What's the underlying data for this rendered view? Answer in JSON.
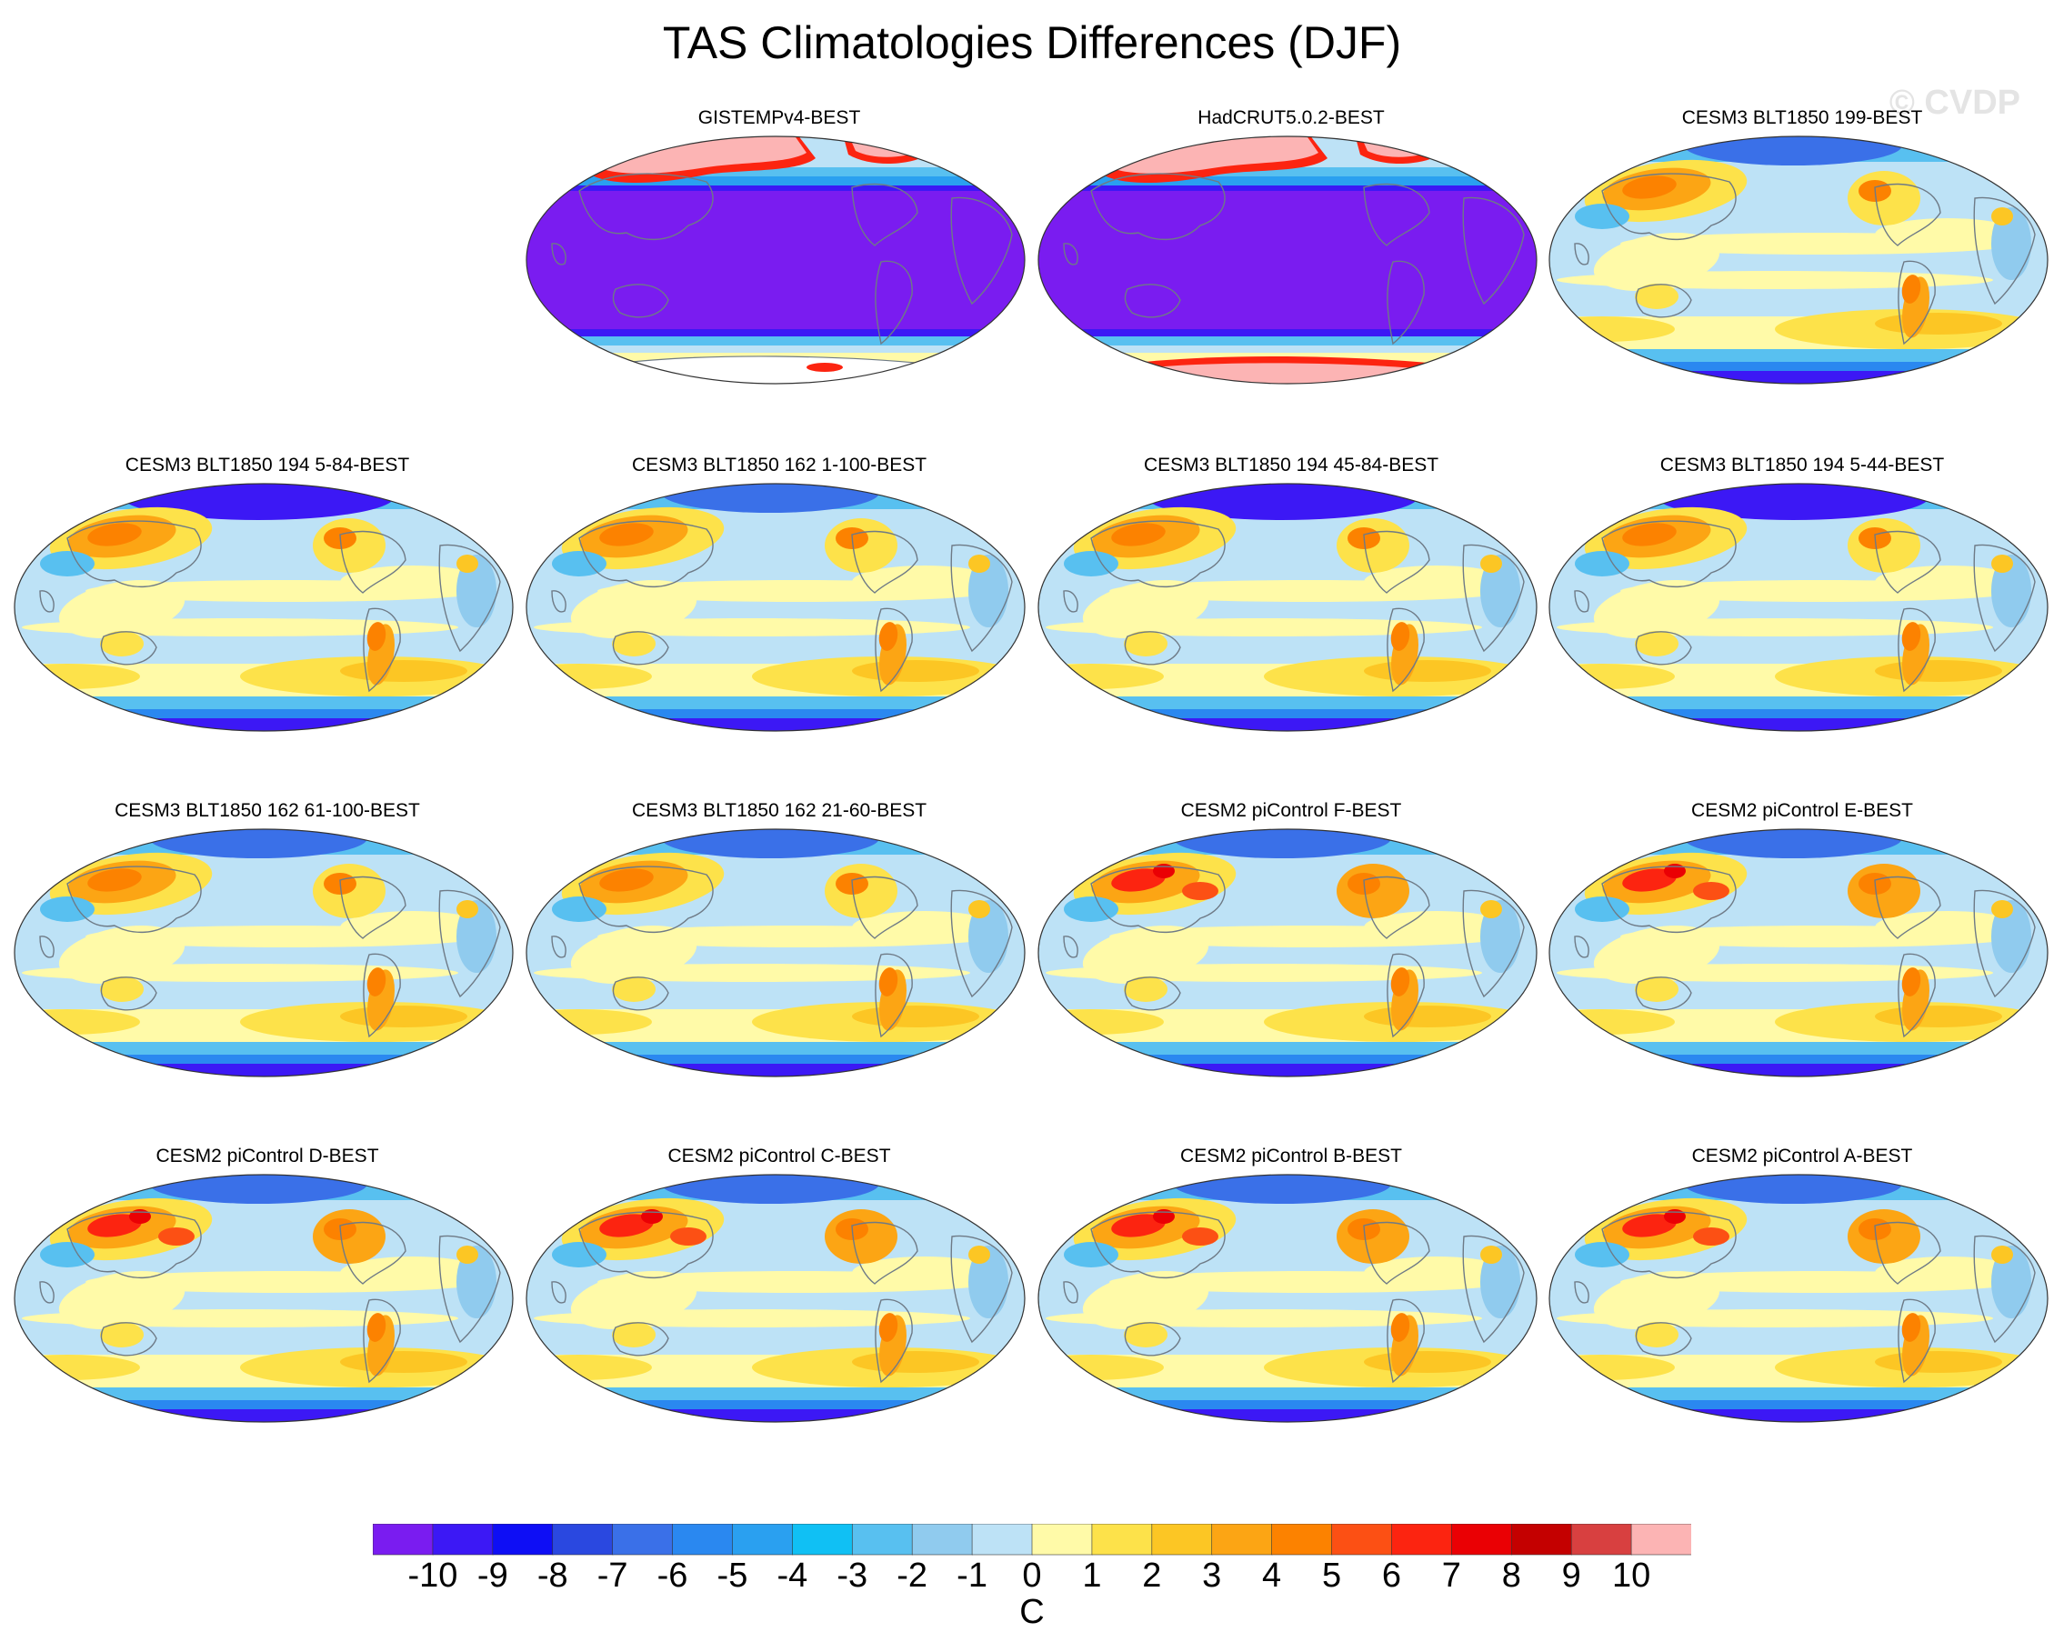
{
  "title": "TAS Climatologies Differences (DJF)",
  "watermark": "© CVDP",
  "panels": [
    {
      "title": "GISTEMPv4-BEST",
      "pattern": "obs",
      "south_fill": "none"
    },
    {
      "title": "HadCRUT5.0.2-BEST",
      "pattern": "obs",
      "south_fill": "high"
    },
    {
      "title": "CESM3 BLT1850 199-BEST",
      "pattern": "model"
    },
    {
      "title": "CESM3 BLT1850 194 5-84-BEST",
      "pattern": "model-cold"
    },
    {
      "title": "CESM3 BLT1850 162 1-100-BEST",
      "pattern": "model"
    },
    {
      "title": "CESM3 BLT1850 194 45-84-BEST",
      "pattern": "model-cold"
    },
    {
      "title": "CESM3 BLT1850 194 5-44-BEST",
      "pattern": "model-cold"
    },
    {
      "title": "CESM3 BLT1850 162 61-100-BEST",
      "pattern": "model"
    },
    {
      "title": "CESM3 BLT1850 162 21-60-BEST",
      "pattern": "model"
    },
    {
      "title": "CESM2 piControl F-BEST",
      "pattern": "model-warm"
    },
    {
      "title": "CESM2 piControl E-BEST",
      "pattern": "model-warm"
    },
    {
      "title": "CESM2 piControl D-BEST",
      "pattern": "model-warm"
    },
    {
      "title": "CESM2 piControl C-BEST",
      "pattern": "model-warm"
    },
    {
      "title": "CESM2 piControl B-BEST",
      "pattern": "model-warm"
    },
    {
      "title": "CESM2 piControl A-BEST",
      "pattern": "model-warm"
    }
  ],
  "colorbar": {
    "colors": [
      "#7a1cf0",
      "#3c18f5",
      "#0e0ef5",
      "#2a48e0",
      "#3a70e8",
      "#2a88f0",
      "#2aa0f0",
      "#10c0f4",
      "#58c0f0",
      "#90cbee",
      "#bde2f6",
      "#fffaa8",
      "#fde24a",
      "#fcc624",
      "#fca514",
      "#fc8200",
      "#fc5014",
      "#fc2410",
      "#ea0004",
      "#c40000",
      "#d84040",
      "#fcb4b4"
    ],
    "labels": [
      "-10",
      "-9",
      "-8",
      "-7",
      "-6",
      "-5",
      "-4",
      "-3",
      "-2",
      "-1",
      "0",
      "1",
      "2",
      "3",
      "4",
      "5",
      "6",
      "7",
      "8",
      "9",
      "10"
    ],
    "units": "C"
  }
}
